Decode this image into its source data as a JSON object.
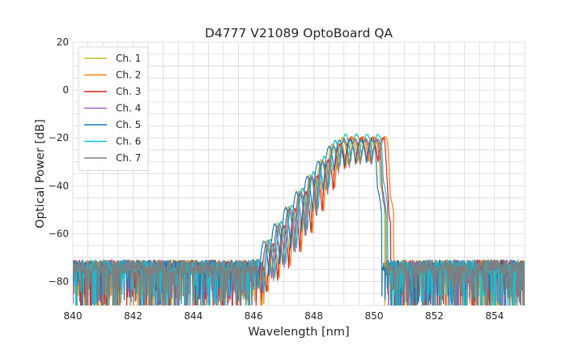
{
  "chart_data": {
    "type": "line",
    "title": "D4777 V21089 OptoBoard QA",
    "xlabel": "Wavelength [nm]",
    "ylabel": "Optical Power [dB]",
    "xlim": [
      840,
      855
    ],
    "ylim": [
      -90,
      20
    ],
    "xticks": [
      840,
      842,
      844,
      846,
      848,
      850,
      852,
      854
    ],
    "yticks": [
      -80,
      -60,
      -40,
      -20,
      0,
      20
    ],
    "xtick_labels": [
      "840",
      "842",
      "844",
      "846",
      "848",
      "850",
      "852",
      "854"
    ],
    "ytick_labels": [
      "−80",
      "−60",
      "−40",
      "−20",
      "0",
      "20"
    ],
    "grid": true,
    "legend_position": "top-left",
    "noise_floor_db": -78,
    "series": [
      {
        "name": "Ch. 1",
        "color": "#bcbd22",
        "center_nm": 848.95,
        "peak_db": -20.0,
        "edge_low_nm": 846.05,
        "edge_high_nm": 850.35,
        "spacing_nm": 0.36
      },
      {
        "name": "Ch. 2",
        "color": "#ff7f0e",
        "center_nm": 849.25,
        "peak_db": -19.5,
        "edge_low_nm": 846.35,
        "edge_high_nm": 850.65,
        "spacing_nm": 0.37
      },
      {
        "name": "Ch. 3",
        "color": "#d62728",
        "center_nm": 849.2,
        "peak_db": -20.0,
        "edge_low_nm": 846.3,
        "edge_high_nm": 850.55,
        "spacing_nm": 0.37
      },
      {
        "name": "Ch. 4",
        "color": "#9467bd",
        "center_nm": 849.0,
        "peak_db": -21.0,
        "edge_low_nm": 846.1,
        "edge_high_nm": 850.4,
        "spacing_nm": 0.36
      },
      {
        "name": "Ch. 5",
        "color": "#1f77b4",
        "center_nm": 848.85,
        "peak_db": -21.0,
        "edge_low_nm": 845.95,
        "edge_high_nm": 850.25,
        "spacing_nm": 0.36
      },
      {
        "name": "Ch. 6",
        "color": "#17becf",
        "center_nm": 849.05,
        "peak_db": -18.5,
        "edge_low_nm": 846.15,
        "edge_high_nm": 850.45,
        "spacing_nm": 0.36
      },
      {
        "name": "Ch. 7",
        "color": "#7f7f7f",
        "center_nm": 849.0,
        "peak_db": -20.5,
        "edge_low_nm": 846.1,
        "edge_high_nm": 850.4,
        "spacing_nm": 0.37
      }
    ]
  }
}
